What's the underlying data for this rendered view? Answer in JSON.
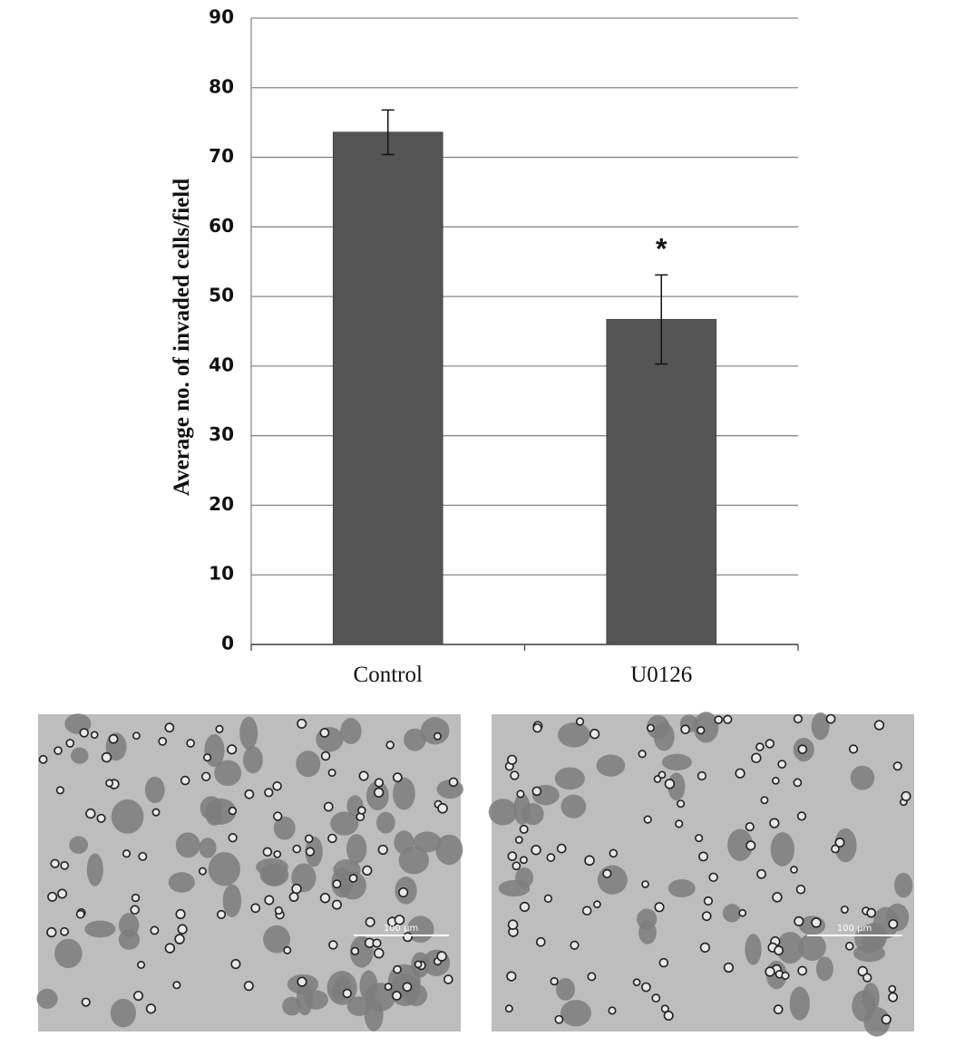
{
  "chart_data": {
    "type": "bar",
    "y_label": "Average no. of invaded cells/field",
    "categories": [
      "Control",
      "U0126"
    ],
    "values": [
      73.6,
      46.7
    ],
    "errors": [
      3.2,
      6.4
    ],
    "color": "#555555",
    "ylim": [
      0,
      90
    ],
    "yticks": [
      0,
      10,
      20,
      30,
      40,
      50,
      60,
      70,
      80,
      90
    ],
    "grid": true,
    "annotations": [
      "*"
    ]
  },
  "panels": [
    {
      "scale_bar": "100 µm"
    },
    {
      "scale_bar": "100 µm"
    }
  ]
}
